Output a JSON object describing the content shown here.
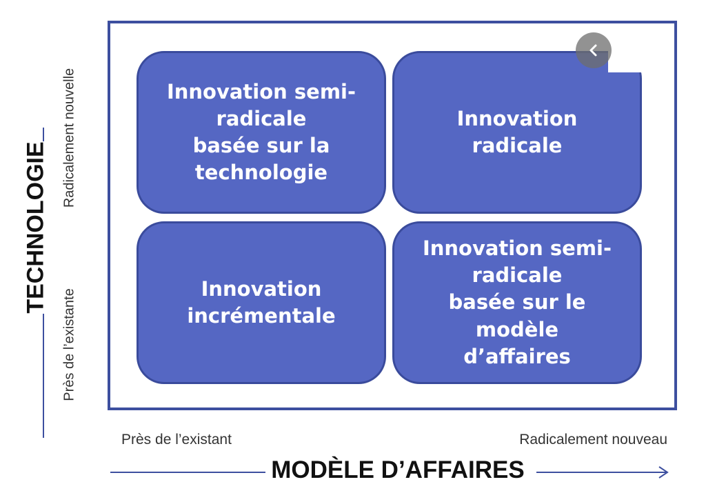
{
  "quadrants": {
    "top_left": "Innovation semi-\nradicale\nbasée sur la\ntechnologie",
    "top_right": "Innovation\nradicale",
    "bottom_left": "Innovation\nincrémentale",
    "bottom_right": "Innovation semi-\nradicale\nbasée sur le modèle\nd’affaires"
  },
  "y_axis": {
    "title": "TECHNOLOGIE",
    "low_label": "Près de l’existante",
    "high_label": "Radicalement nouvelle"
  },
  "x_axis": {
    "title": "MODÈLE D’AFFAIRES",
    "low_label": "Près de l’existant",
    "high_label": "Radicalement nouveau"
  },
  "colors": {
    "quadrant_fill": "#5567c3",
    "quadrant_border": "#3a4b9c",
    "frame_border": "#3d4f9f"
  },
  "icons": {
    "nav": "chevron-left-icon"
  }
}
